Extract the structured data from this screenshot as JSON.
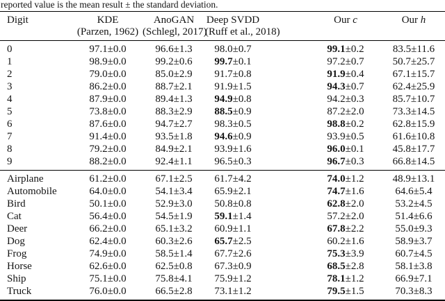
{
  "caption": "reported value is the mean result ± the standard deviation.",
  "plus_minus": "±",
  "columns": [
    {
      "name": "Digit",
      "cite": ""
    },
    {
      "name": "KDE",
      "cite": "(Parzen, 1962)"
    },
    {
      "name": "AnoGAN",
      "cite": "(Schlegl, 2017)"
    },
    {
      "name": "Deep SVDD",
      "cite": "(Ruff et al., 2018)"
    },
    {
      "name": "Our",
      "var": "c"
    },
    {
      "name": "Our",
      "var": "h"
    }
  ],
  "digit_rows": [
    {
      "label": "0",
      "cells": [
        {
          "m": "97.1",
          "s": "0.0"
        },
        {
          "m": "96.6",
          "s": "1.3"
        },
        {
          "m": "98.0",
          "s": "0.7"
        },
        {
          "m": "99.1",
          "s": "0.2",
          "b": true
        },
        {
          "m": "83.5",
          "s": "11.6"
        }
      ]
    },
    {
      "label": "1",
      "cells": [
        {
          "m": "98.9",
          "s": "0.0"
        },
        {
          "m": "99.2",
          "s": "0.6"
        },
        {
          "m": "99.7",
          "s": "0.1",
          "b": true
        },
        {
          "m": "97.2",
          "s": "0.7"
        },
        {
          "m": "50.7",
          "s": "25.7"
        }
      ]
    },
    {
      "label": "2",
      "cells": [
        {
          "m": "79.0",
          "s": "0.0"
        },
        {
          "m": "85.0",
          "s": "2.9"
        },
        {
          "m": "91.7",
          "s": "0.8"
        },
        {
          "m": "91.9",
          "s": "0.4",
          "b": true
        },
        {
          "m": "67.1",
          "s": "15.7"
        }
      ]
    },
    {
      "label": "3",
      "cells": [
        {
          "m": "86.2",
          "s": "0.0"
        },
        {
          "m": "88.7",
          "s": "2.1"
        },
        {
          "m": "91.9",
          "s": "1.5"
        },
        {
          "m": "94.3",
          "s": "0.7",
          "b": true
        },
        {
          "m": "62.4",
          "s": "25.9"
        }
      ]
    },
    {
      "label": "4",
      "cells": [
        {
          "m": "87.9",
          "s": "0.0"
        },
        {
          "m": "89.4",
          "s": "1.3"
        },
        {
          "m": "94.9",
          "s": "0.8",
          "b": true
        },
        {
          "m": "94.2",
          "s": "0.3"
        },
        {
          "m": "85.7",
          "s": "10.7"
        }
      ]
    },
    {
      "label": "5",
      "cells": [
        {
          "m": "73.8",
          "s": "0.0"
        },
        {
          "m": "88.3",
          "s": "2.9"
        },
        {
          "m": "88.5",
          "s": "0.9",
          "b": true
        },
        {
          "m": "87.2",
          "s": "2.0"
        },
        {
          "m": "73.3",
          "s": "14.5"
        }
      ]
    },
    {
      "label": "6",
      "cells": [
        {
          "m": "87.6",
          "s": "0.0"
        },
        {
          "m": "94.7",
          "s": "2.7"
        },
        {
          "m": "98.3",
          "s": "0.5"
        },
        {
          "m": "98.8",
          "s": "0.2",
          "b": true
        },
        {
          "m": "62.8",
          "s": "15.9"
        }
      ]
    },
    {
      "label": "7",
      "cells": [
        {
          "m": "91.4",
          "s": "0.0"
        },
        {
          "m": "93.5",
          "s": "1.8"
        },
        {
          "m": "94.6",
          "s": "0.9",
          "b": true
        },
        {
          "m": "93.9",
          "s": "0.5"
        },
        {
          "m": "61.6",
          "s": "10.8"
        }
      ]
    },
    {
      "label": "8",
      "cells": [
        {
          "m": "79.2",
          "s": "0.0"
        },
        {
          "m": "84.9",
          "s": "2.1"
        },
        {
          "m": "93.9",
          "s": "1.6"
        },
        {
          "m": "96.0",
          "s": "0.1",
          "b": true
        },
        {
          "m": "45.8",
          "s": "17.7"
        }
      ]
    },
    {
      "label": "9",
      "cells": [
        {
          "m": "88.2",
          "s": "0.0"
        },
        {
          "m": "92.4",
          "s": "1.1"
        },
        {
          "m": "96.5",
          "s": "0.3"
        },
        {
          "m": "96.7",
          "s": "0.3",
          "b": true
        },
        {
          "m": "66.8",
          "s": "14.5"
        }
      ]
    }
  ],
  "class_rows": [
    {
      "label": "Airplane",
      "cells": [
        {
          "m": "61.2",
          "s": "0.0"
        },
        {
          "m": "67.1",
          "s": "2.5"
        },
        {
          "m": "61.7",
          "s": "4.2"
        },
        {
          "m": "74.0",
          "s": "1.2",
          "b": true
        },
        {
          "m": "48.9",
          "s": "13.1"
        }
      ]
    },
    {
      "label": "Automobile",
      "cells": [
        {
          "m": "64.0",
          "s": "0.0"
        },
        {
          "m": "54.1",
          "s": "3.4"
        },
        {
          "m": "65.9",
          "s": "2.1"
        },
        {
          "m": "74.7",
          "s": "1.6",
          "b": true
        },
        {
          "m": "64.6",
          "s": "5.4"
        }
      ]
    },
    {
      "label": "Bird",
      "cells": [
        {
          "m": "50.1",
          "s": "0.0"
        },
        {
          "m": "52.9",
          "s": "3.0"
        },
        {
          "m": "50.8",
          "s": "0.8"
        },
        {
          "m": "62.8",
          "s": "2.0",
          "b": true
        },
        {
          "m": "53.2",
          "s": "4.5"
        }
      ]
    },
    {
      "label": "Cat",
      "cells": [
        {
          "m": "56.4",
          "s": "0.0"
        },
        {
          "m": "54.5",
          "s": "1.9"
        },
        {
          "m": "59.1",
          "s": "1.4",
          "b": true
        },
        {
          "m": "57.2",
          "s": "2.0"
        },
        {
          "m": "51.4",
          "s": "6.6"
        }
      ]
    },
    {
      "label": "Deer",
      "cells": [
        {
          "m": "66.2",
          "s": "0.0"
        },
        {
          "m": "65.1",
          "s": "3.2"
        },
        {
          "m": "60.9",
          "s": "1.1"
        },
        {
          "m": "67.8",
          "s": "2.2",
          "b": true
        },
        {
          "m": "55.0",
          "s": "9.3"
        }
      ]
    },
    {
      "label": "Dog",
      "cells": [
        {
          "m": "62.4",
          "s": "0.0"
        },
        {
          "m": "60.3",
          "s": "2.6"
        },
        {
          "m": "65.7",
          "s": "2.5",
          "b": true
        },
        {
          "m": "60.2",
          "s": "1.6"
        },
        {
          "m": "58.9",
          "s": "3.7"
        }
      ]
    },
    {
      "label": "Frog",
      "cells": [
        {
          "m": "74.9",
          "s": "0.0"
        },
        {
          "m": "58.5",
          "s": "1.4"
        },
        {
          "m": "67.7",
          "s": "2.6"
        },
        {
          "m": "75.3",
          "s": "3.9",
          "b": true
        },
        {
          "m": "60.7",
          "s": "4.5"
        }
      ]
    },
    {
      "label": "Horse",
      "cells": [
        {
          "m": "62.6",
          "s": "0.0"
        },
        {
          "m": "62.5",
          "s": "0.8"
        },
        {
          "m": "67.3",
          "s": "0.9"
        },
        {
          "m": "68.5",
          "s": "2.8",
          "b": true
        },
        {
          "m": "58.1",
          "s": "3.8"
        }
      ]
    },
    {
      "label": "Ship",
      "cells": [
        {
          "m": "75.1",
          "s": "0.0"
        },
        {
          "m": "75.8",
          "s": "4.1"
        },
        {
          "m": "75.9",
          "s": "1.2"
        },
        {
          "m": "78.1",
          "s": "1.2",
          "b": true
        },
        {
          "m": "66.9",
          "s": "7.1"
        }
      ]
    },
    {
      "label": "Truck",
      "cells": [
        {
          "m": "76.0",
          "s": "0.0"
        },
        {
          "m": "66.5",
          "s": "2.8"
        },
        {
          "m": "73.1",
          "s": "1.2"
        },
        {
          "m": "79.5",
          "s": "1.5",
          "b": true
        },
        {
          "m": "70.3",
          "s": "8.3"
        }
      ]
    }
  ]
}
